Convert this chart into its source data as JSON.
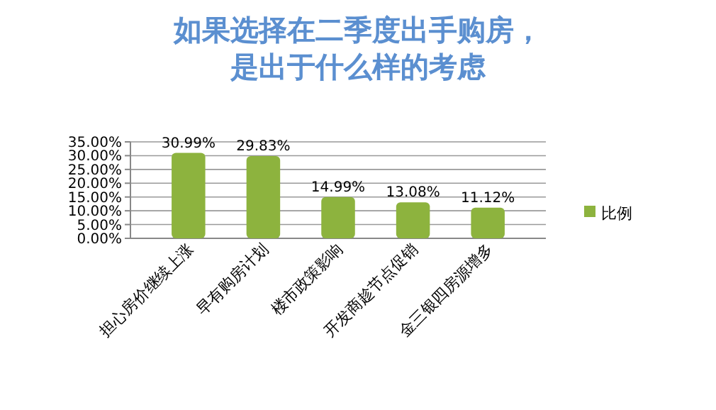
{
  "chart_data": {
    "type": "bar",
    "title": "如果选择在二季度出手购房，是出于什么样的考虑",
    "categories": [
      "担心房价继续上涨",
      "早有购房计划",
      "楼市政策影响",
      "开发商趁节点促销",
      "金三银四房源增多"
    ],
    "series": [
      {
        "name": "比例",
        "color": "#8db33e",
        "values": [
          30.99,
          29.83,
          14.99,
          13.08,
          11.12
        ],
        "value_labels": [
          "30.99%",
          "29.83%",
          "14.99%",
          "13.08%",
          "11.12%"
        ]
      }
    ],
    "ylim": [
      0,
      35
    ],
    "yticks": [
      {
        "value": 0,
        "label": "0.00%"
      },
      {
        "value": 5,
        "label": "5.00%"
      },
      {
        "value": 10,
        "label": "10.00%"
      },
      {
        "value": 15,
        "label": "15.00%"
      },
      {
        "value": 20,
        "label": "20.00%"
      },
      {
        "value": 25,
        "label": "25.00%"
      },
      {
        "value": 30,
        "label": "30.00%"
      },
      {
        "value": 35,
        "label": "35.00%"
      }
    ],
    "grid": "y",
    "legend": "right"
  }
}
